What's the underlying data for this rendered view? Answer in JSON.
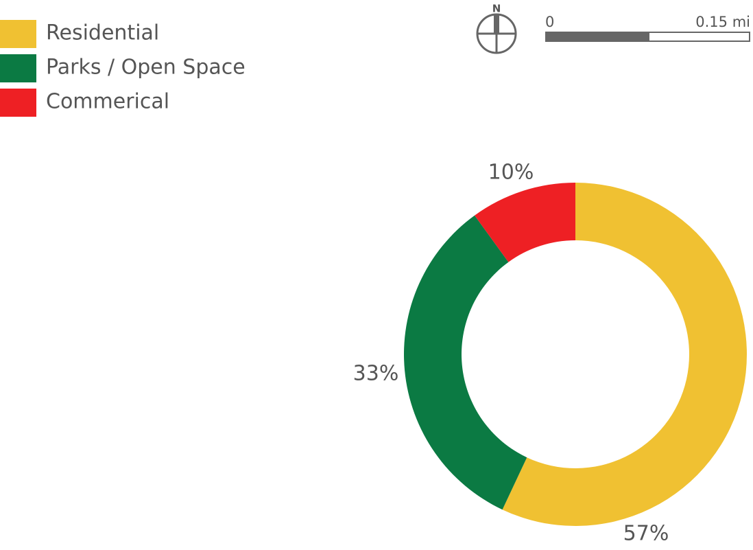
{
  "chart_data": {
    "type": "pie",
    "categories": [
      "Residential",
      "Parks / Open Space",
      "Commerical"
    ],
    "values": [
      57,
      33,
      10
    ],
    "value_labels": [
      "57%",
      "33%",
      "10%"
    ],
    "colors": [
      "#f0c132",
      "#0b7a43",
      "#ee2024"
    ],
    "donut": true
  },
  "north_arrow": {
    "label": "N"
  },
  "scale_bar": {
    "labels": [
      "0",
      "0.15 mi"
    ]
  }
}
